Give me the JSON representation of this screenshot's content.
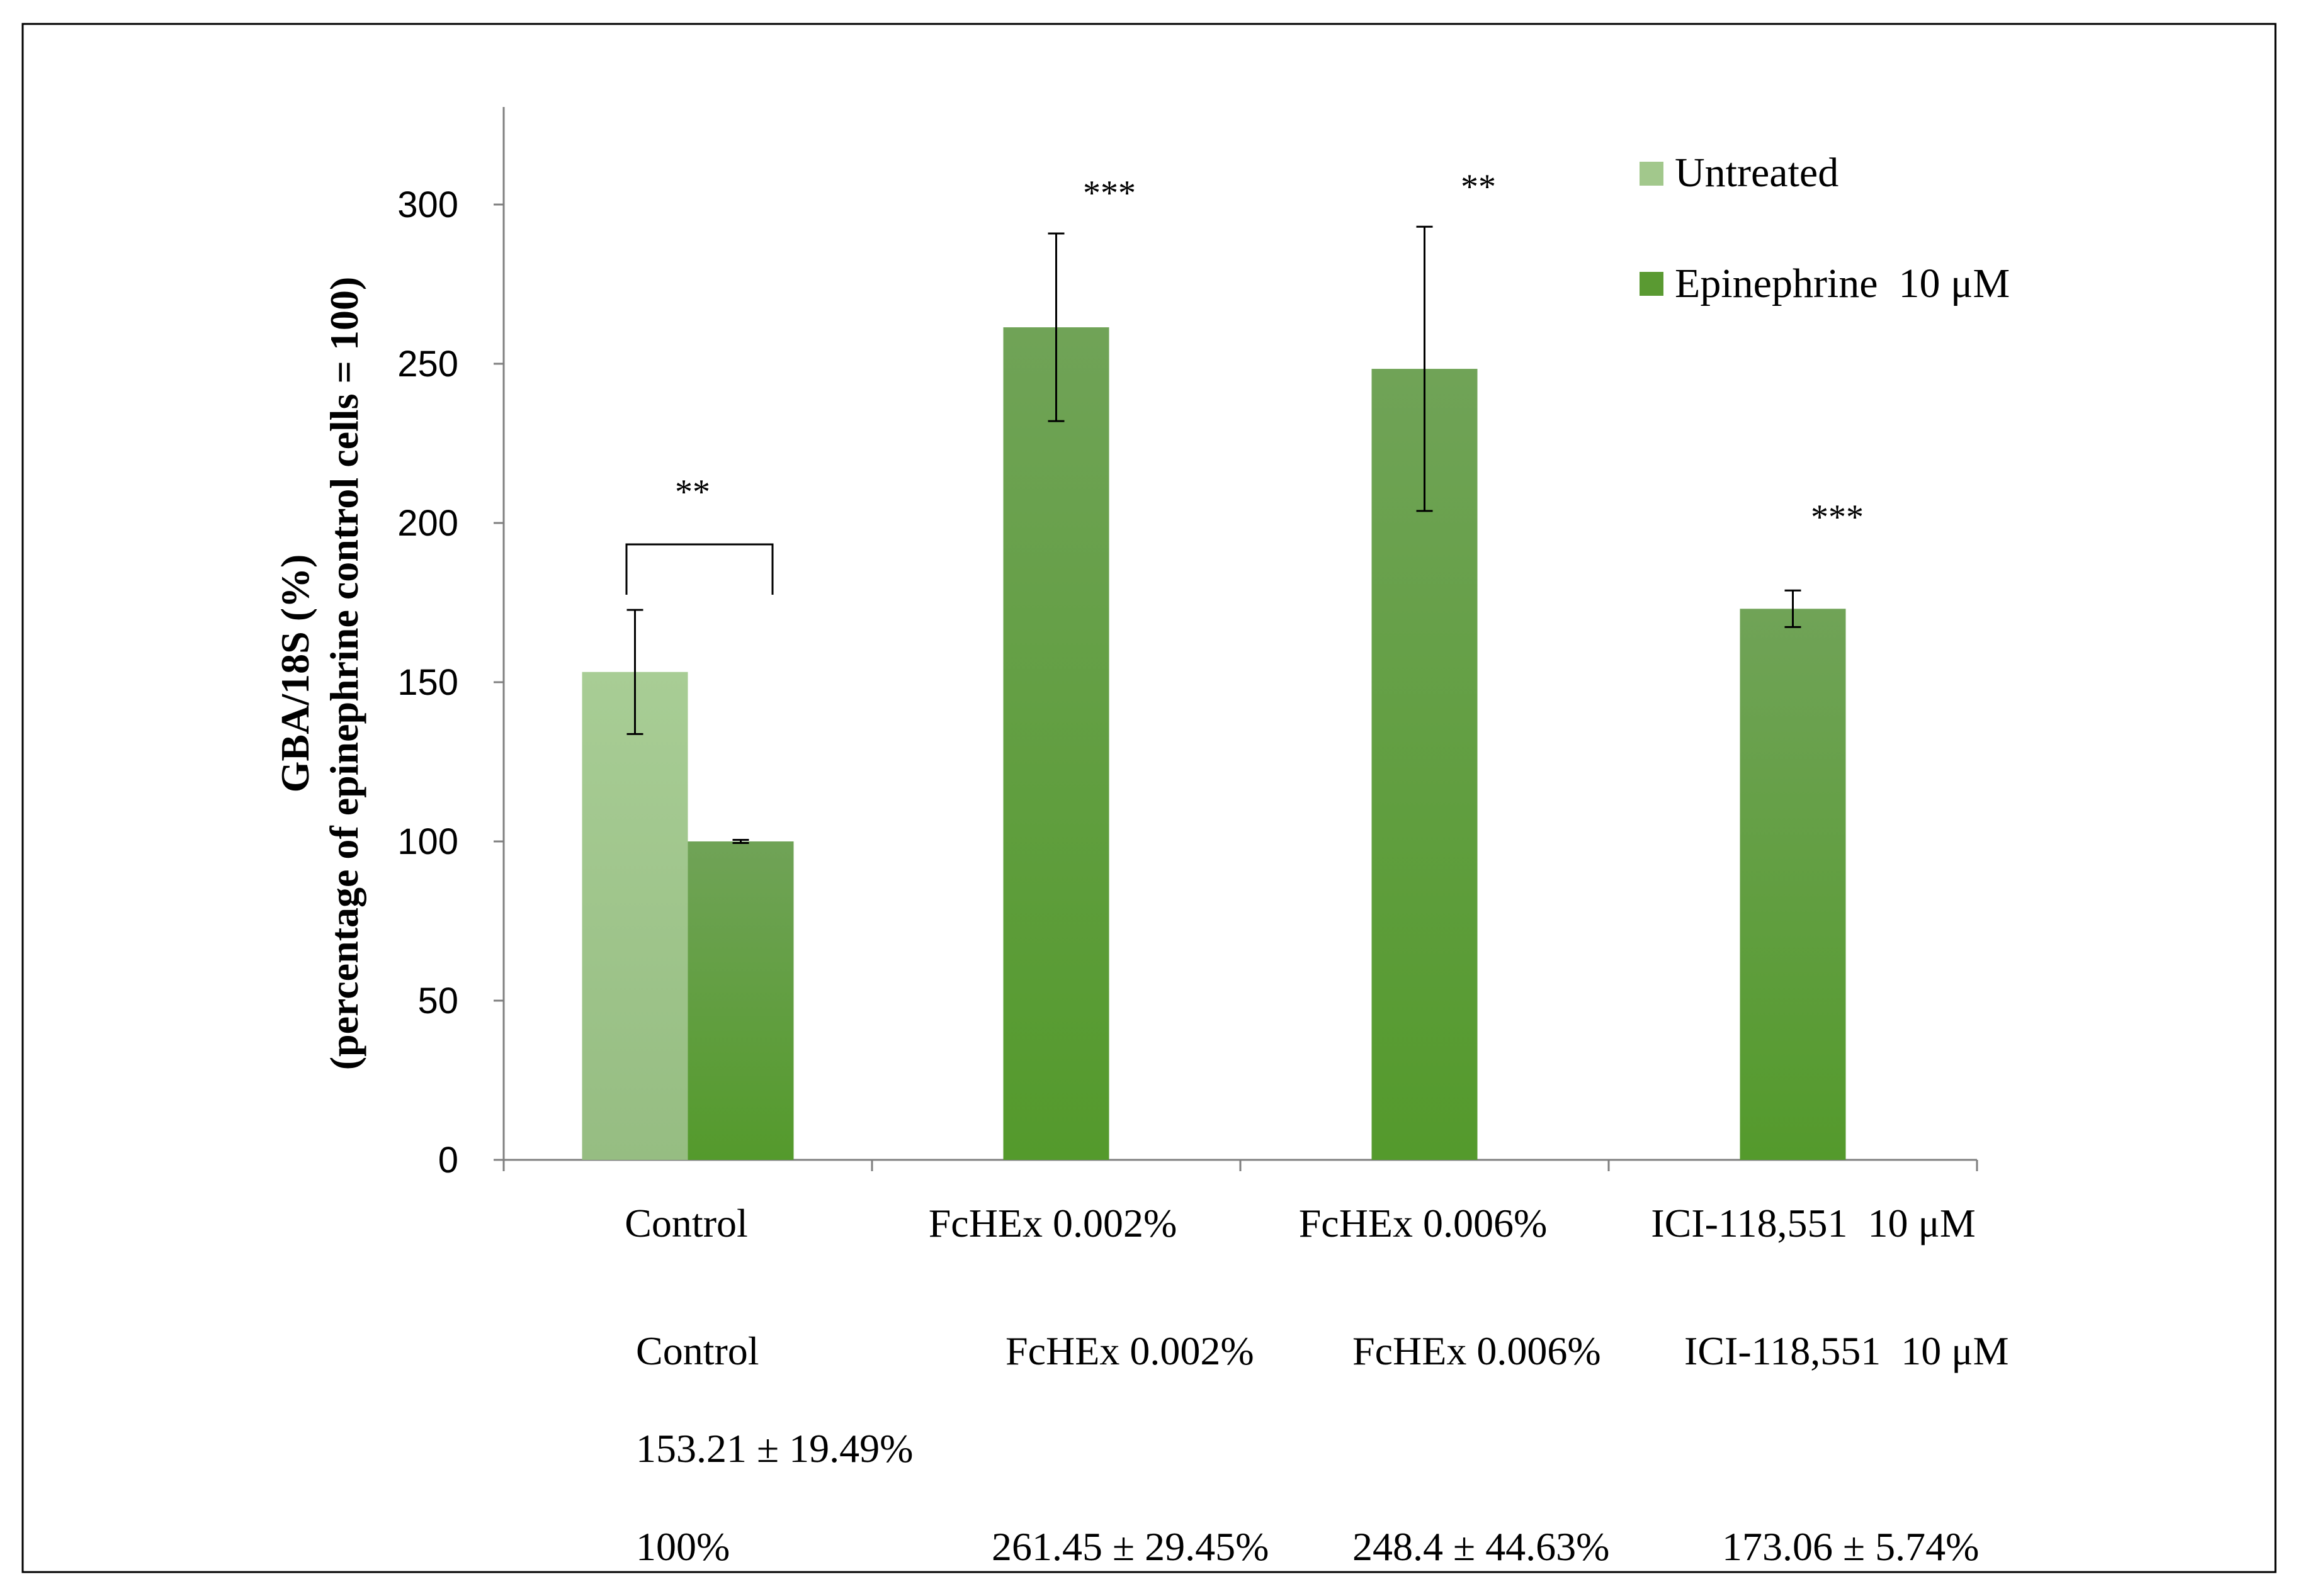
{
  "colors": {
    "untreated": "#a2c88c",
    "epinephrine": "#5a9a32",
    "axis": "#7f7f7f",
    "text": "#000000",
    "frame": "#000000"
  },
  "chart_data": {
    "type": "bar",
    "ylabel_line1": "GBA/18S (%)",
    "ylabel_line2": "(percentage of epinephrine control cells = 100)",
    "ylim": [
      0,
      330
    ],
    "yticks": [
      0,
      50,
      100,
      150,
      200,
      250,
      300
    ],
    "categories": [
      "Control",
      "FcHEx 0.002%",
      "FcHEx 0.006%",
      "ICI-118,551  10 μM"
    ],
    "series": [
      {
        "name": "Untreated",
        "values": [
          153.21,
          null,
          null,
          null
        ],
        "errors": [
          19.49,
          null,
          null,
          null
        ]
      },
      {
        "name": "Epinephrine  10 μM",
        "values": [
          100,
          261.45,
          248.4,
          173.06
        ],
        "errors": [
          0.5,
          29.45,
          44.63,
          5.74
        ]
      }
    ],
    "significance": [
      {
        "label": "**",
        "target": "Control bracket"
      },
      {
        "label": "***",
        "target": "FcHEx 0.002%"
      },
      {
        "label": "**",
        "target": "FcHEx 0.006%"
      },
      {
        "label": "***",
        "target": "ICI-118,551  10 μM"
      }
    ],
    "legend": [
      "Untreated",
      "Epinephrine  10 μM"
    ],
    "legend_position": "top-right"
  },
  "table": {
    "headers": [
      "Control",
      "FcHEx 0.002%",
      "FcHEx 0.006%",
      "ICI-118,551  10 μM"
    ],
    "untreated_row": [
      "153.21 ± 19.49%",
      "",
      "",
      ""
    ],
    "epinephrine_row": [
      "100%",
      "261.45 ± 29.45%",
      "248.4 ± 44.63%",
      "173.06 ± 5.74%"
    ]
  }
}
